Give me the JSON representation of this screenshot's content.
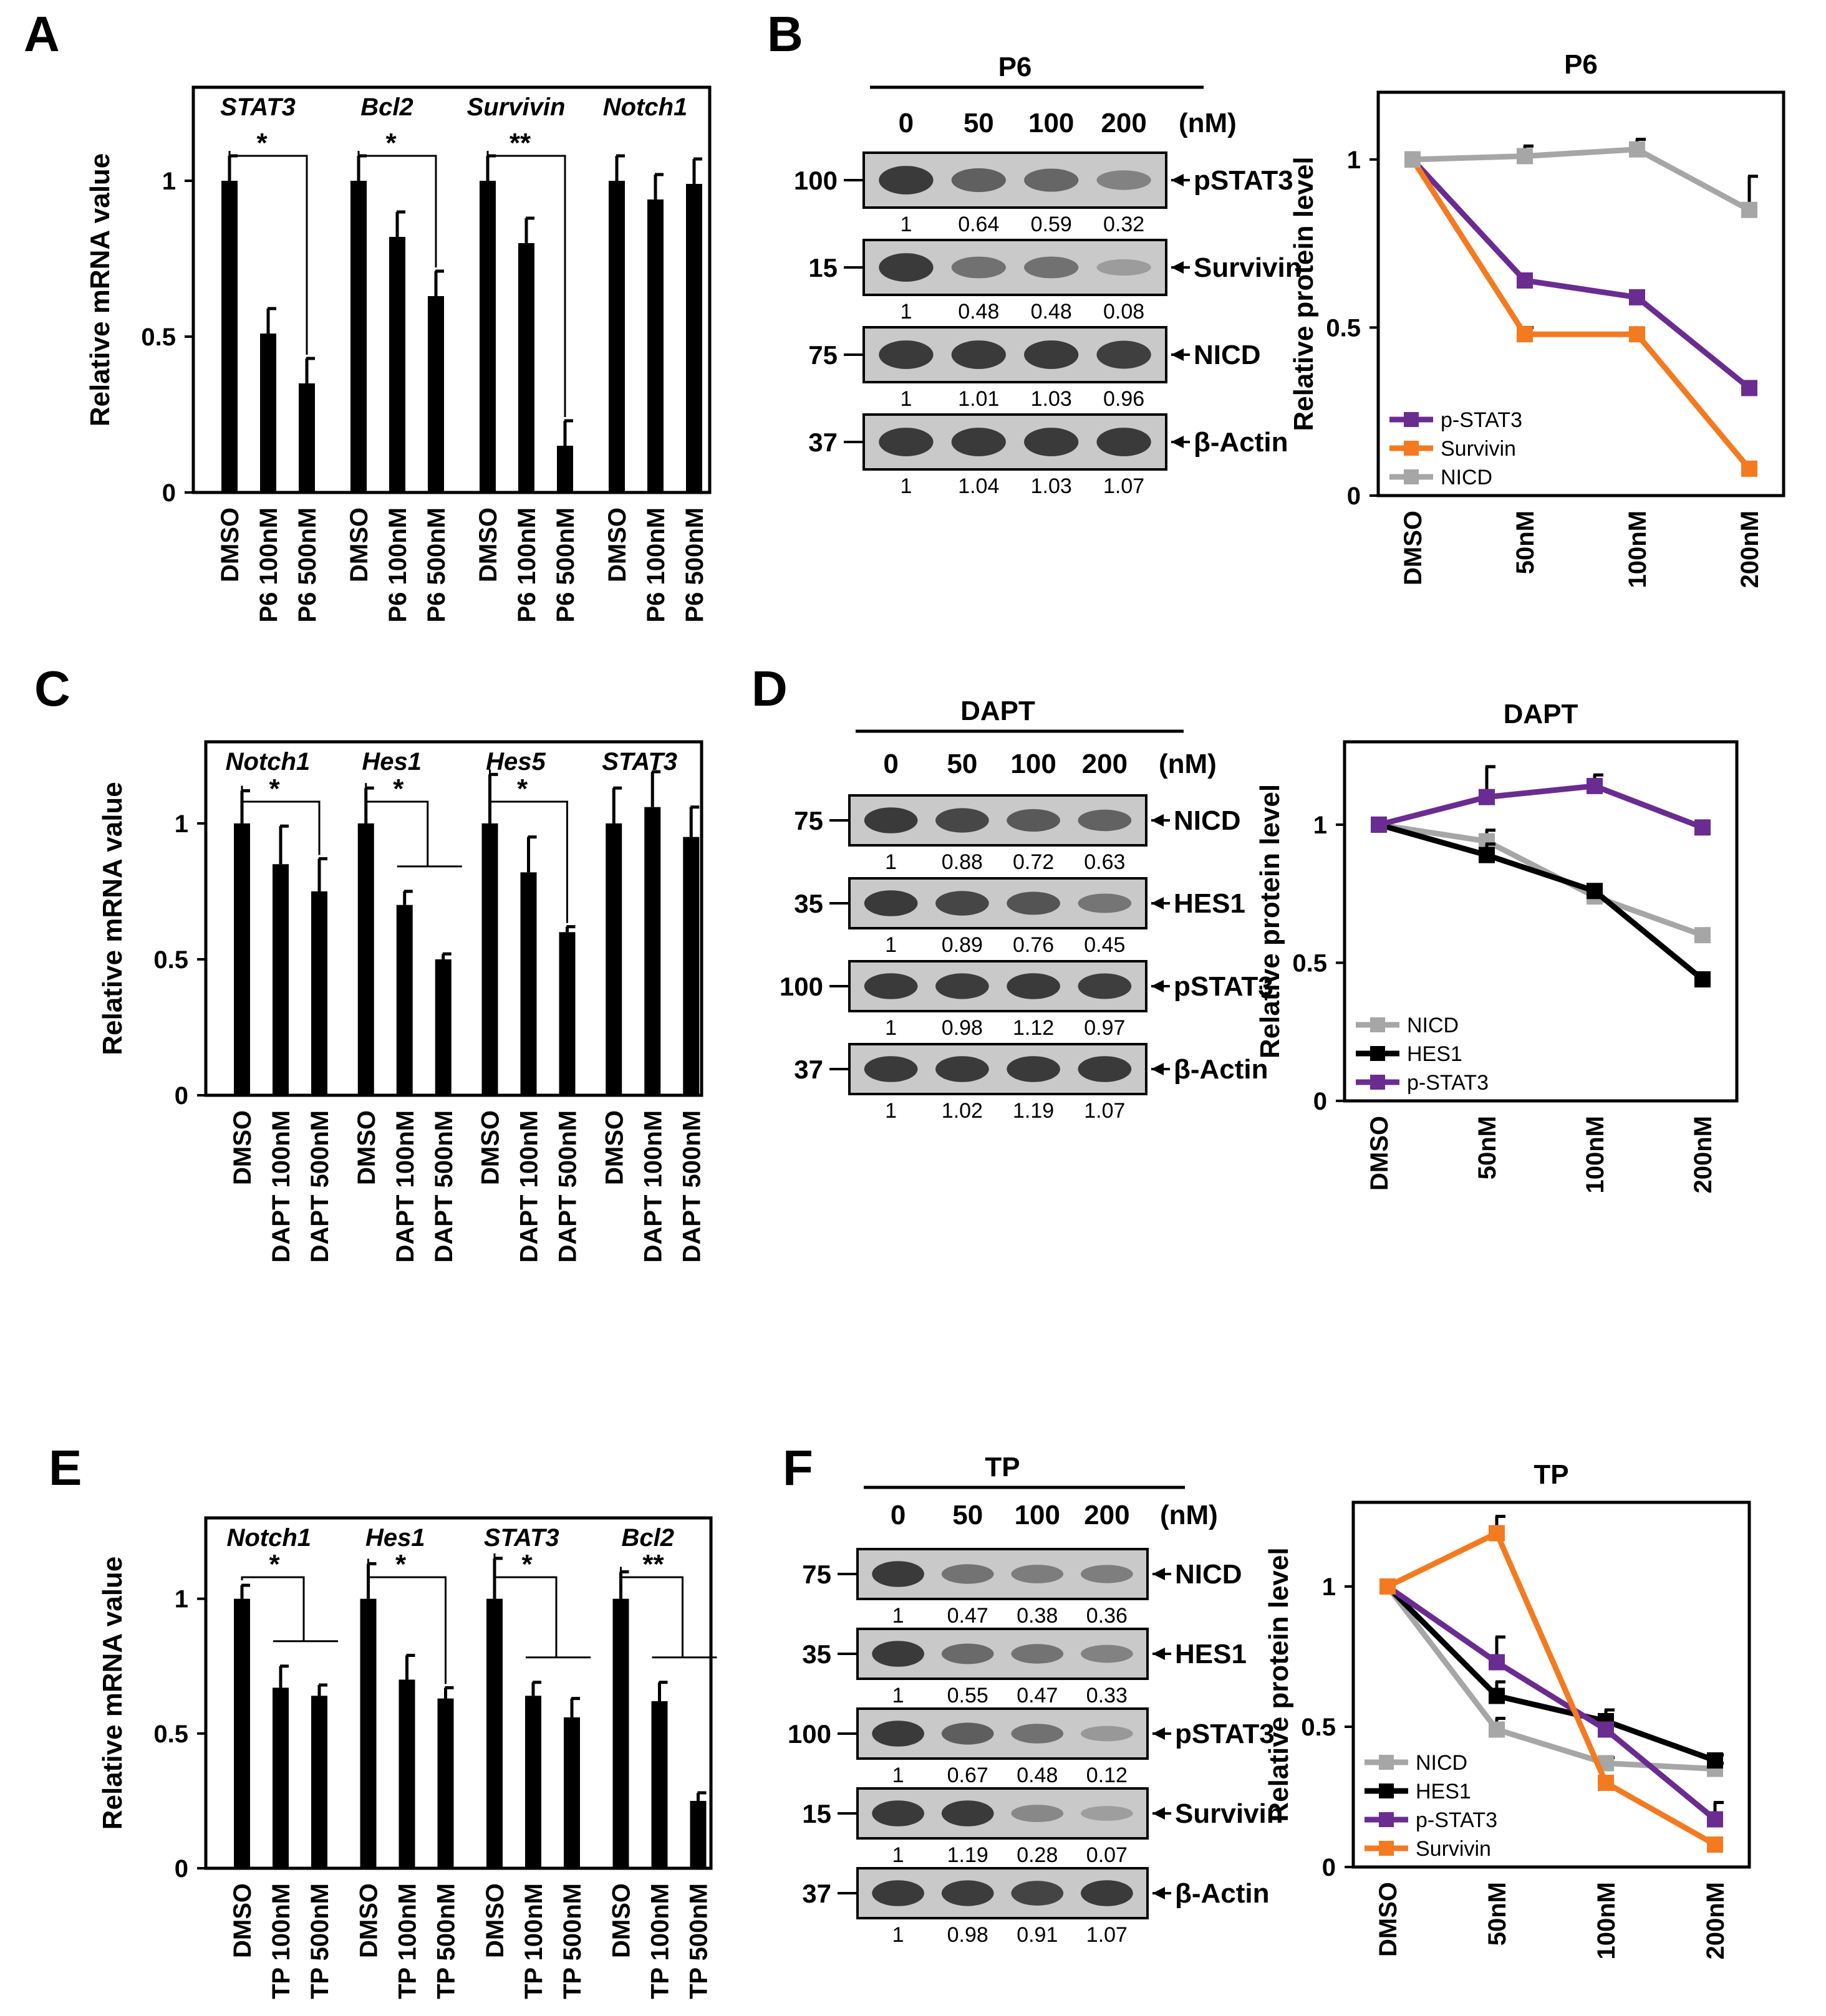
{
  "figure": {
    "panel_labels": [
      "A",
      "B",
      "C",
      "D",
      "E",
      "F"
    ],
    "colors": {
      "bar": "#000000",
      "purple": "#6a2c91",
      "orange": "#f47a20",
      "gray": "#a6a6a6",
      "black": "#000000",
      "blot_bg": "#c9c9c9",
      "band": "#3a3a3a"
    }
  },
  "chart_data": [
    {
      "panel": "A",
      "type": "bar",
      "ylabel": "Relative mRNA value",
      "ylim": [
        0,
        1.3
      ],
      "yticks": [
        {
          "v": 0,
          "t": "0"
        },
        {
          "v": 0.5,
          "t": "0.5"
        },
        {
          "v": 1,
          "t": "1"
        }
      ],
      "tick_labels": [
        "DMSO",
        "P6 100nM",
        "P6 500nM"
      ],
      "groups": [
        {
          "name": "STAT3",
          "values": [
            1.0,
            0.51,
            0.35
          ],
          "errors": [
            0.08,
            0.08,
            0.08
          ],
          "sig": "*",
          "sig_type": "direct"
        },
        {
          "name": "Bcl2",
          "values": [
            1.0,
            0.82,
            0.63
          ],
          "errors": [
            0.08,
            0.08,
            0.08
          ],
          "sig": "*",
          "sig_type": "direct"
        },
        {
          "name": "Survivin",
          "values": [
            1.0,
            0.8,
            0.15
          ],
          "errors": [
            0.08,
            0.08,
            0.08
          ],
          "sig": "**",
          "sig_type": "direct"
        },
        {
          "name": "Notch1",
          "values": [
            1.0,
            0.94,
            0.99
          ],
          "errors": [
            0.08,
            0.08,
            0.08
          ],
          "sig": "",
          "sig_type": "none"
        }
      ]
    },
    {
      "panel": "C",
      "type": "bar",
      "ylabel": "Relative mRNA value",
      "ylim": [
        0,
        1.3
      ],
      "yticks": [
        {
          "v": 0,
          "t": "0"
        },
        {
          "v": 0.5,
          "t": "0.5"
        },
        {
          "v": 1,
          "t": "1"
        }
      ],
      "tick_labels": [
        "DMSO",
        "DAPT 100nM",
        "DAPT 500nM"
      ],
      "groups": [
        {
          "name": "Notch1",
          "values": [
            1.0,
            0.85,
            0.75
          ],
          "errors": [
            0.12,
            0.14,
            0.12
          ],
          "sig": "*",
          "sig_type": "direct"
        },
        {
          "name": "Hes1",
          "values": [
            1.0,
            0.7,
            0.5
          ],
          "errors": [
            0.13,
            0.05,
            0.02
          ],
          "sig": "*",
          "sig_type": "shared"
        },
        {
          "name": "Hes5",
          "values": [
            1.0,
            0.82,
            0.6
          ],
          "errors": [
            0.18,
            0.13,
            0.02
          ],
          "sig": "*",
          "sig_type": "direct"
        },
        {
          "name": "STAT3",
          "values": [
            1.0,
            1.06,
            0.95
          ],
          "errors": [
            0.13,
            0.13,
            0.11
          ],
          "sig": "",
          "sig_type": "none"
        }
      ]
    },
    {
      "panel": "E",
      "type": "bar",
      "ylabel": "Relative mRNA value",
      "ylim": [
        0,
        1.3
      ],
      "yticks": [
        {
          "v": 0,
          "t": "0"
        },
        {
          "v": 0.5,
          "t": "0.5"
        },
        {
          "v": 1,
          "t": "1"
        }
      ],
      "tick_labels": [
        "DMSO",
        "TP 100nM",
        "TP 500nM"
      ],
      "groups": [
        {
          "name": "Notch1",
          "values": [
            1.0,
            0.67,
            0.64
          ],
          "errors": [
            0.05,
            0.08,
            0.04
          ],
          "sig": "*",
          "sig_type": "shared"
        },
        {
          "name": "Hes1",
          "values": [
            1.0,
            0.7,
            0.63
          ],
          "errors": [
            0.13,
            0.09,
            0.04
          ],
          "sig": "*",
          "sig_type": "direct"
        },
        {
          "name": "STAT3",
          "values": [
            1.0,
            0.64,
            0.56
          ],
          "errors": [
            0.15,
            0.05,
            0.07
          ],
          "sig": "*",
          "sig_type": "shared"
        },
        {
          "name": "Bcl2",
          "values": [
            1.0,
            0.62,
            0.25
          ],
          "errors": [
            0.1,
            0.07,
            0.03
          ],
          "sig": "**",
          "sig_type": "shared"
        }
      ]
    },
    {
      "panel": "B",
      "type": "line",
      "title": "P6",
      "ylabel": "Relative protein level",
      "ylim": [
        0,
        1.2
      ],
      "yticks": [
        {
          "v": 0,
          "t": "0"
        },
        {
          "v": 0.5,
          "t": "0.5"
        },
        {
          "v": 1,
          "t": "1"
        }
      ],
      "categories": [
        "DMSO",
        "50nM",
        "100nM",
        "200nM"
      ],
      "legend_position": "bottom-left",
      "series": [
        {
          "name": "p-STAT3",
          "color": "#6a2c91",
          "values": [
            1.0,
            0.64,
            0.59,
            0.32
          ],
          "errors": [
            0,
            0,
            0,
            0
          ]
        },
        {
          "name": "Survivin",
          "color": "#f47a20",
          "values": [
            1.0,
            0.48,
            0.48,
            0.08
          ],
          "errors": [
            0,
            0.02,
            0,
            0
          ]
        },
        {
          "name": "NICD",
          "color": "#a6a6a6",
          "values": [
            1.0,
            1.01,
            1.03,
            0.85
          ],
          "errors": [
            0,
            0.03,
            0.03,
            0.1
          ]
        }
      ]
    },
    {
      "panel": "D",
      "type": "line",
      "title": "DAPT",
      "ylabel": "Relative protein level",
      "ylim": [
        0,
        1.3
      ],
      "yticks": [
        {
          "v": 0,
          "t": "0"
        },
        {
          "v": 0.5,
          "t": "0.5"
        },
        {
          "v": 1,
          "t": "1"
        }
      ],
      "categories": [
        "DMSO",
        "50nM",
        "100nM",
        "200nM"
      ],
      "legend_position": "bottom-left",
      "series": [
        {
          "name": "NICD",
          "color": "#a6a6a6",
          "values": [
            1.0,
            0.94,
            0.74,
            0.6
          ],
          "errors": [
            0,
            0.04,
            0,
            0
          ]
        },
        {
          "name": "HES1",
          "color": "#000000",
          "values": [
            1.0,
            0.89,
            0.76,
            0.44
          ],
          "errors": [
            0,
            0.04,
            0,
            0
          ]
        },
        {
          "name": "p-STAT3",
          "color": "#6a2c91",
          "values": [
            1.0,
            1.1,
            1.14,
            0.99
          ],
          "errors": [
            0,
            0.11,
            0.04,
            0
          ]
        }
      ]
    },
    {
      "panel": "F",
      "type": "line",
      "title": "TP",
      "ylabel": "Relative protein level",
      "ylim": [
        0,
        1.3
      ],
      "yticks": [
        {
          "v": 0,
          "t": "0"
        },
        {
          "v": 0.5,
          "t": "0.5"
        },
        {
          "v": 1,
          "t": "1"
        }
      ],
      "categories": [
        "DMSO",
        "50nM",
        "100nM",
        "200nM"
      ],
      "legend_position": "bottom-left",
      "series": [
        {
          "name": "NICD",
          "color": "#a6a6a6",
          "values": [
            1.0,
            0.49,
            0.37,
            0.35
          ],
          "errors": [
            0,
            0.04,
            0.02,
            0.02
          ]
        },
        {
          "name": "HES1",
          "color": "#000000",
          "values": [
            1.0,
            0.61,
            0.52,
            0.38
          ],
          "errors": [
            0,
            0.05,
            0.04,
            0.02
          ]
        },
        {
          "name": "p-STAT3",
          "color": "#6a2c91",
          "values": [
            1.0,
            0.73,
            0.49,
            0.17
          ],
          "errors": [
            0,
            0.09,
            0,
            0.06
          ]
        },
        {
          "name": "Survivin",
          "color": "#f47a20",
          "values": [
            1.0,
            1.19,
            0.3,
            0.08
          ],
          "errors": [
            0,
            0.06,
            0,
            0
          ]
        }
      ]
    }
  ],
  "blots": [
    {
      "panel": "B",
      "treatment": "P6",
      "concs": [
        "0",
        "50",
        "100",
        "200"
      ],
      "unit": "(nM)",
      "rows": [
        {
          "mw": "100",
          "target": "pSTAT3",
          "quant": [
            "1",
            "0.64",
            "0.59",
            "0.32"
          ]
        },
        {
          "mw": "15",
          "target": "Survivin",
          "quant": [
            "1",
            "0.48",
            "0.48",
            "0.08"
          ]
        },
        {
          "mw": "75",
          "target": "NICD",
          "quant": [
            "1",
            "1.01",
            "1.03",
            "0.96"
          ]
        },
        {
          "mw": "37",
          "target": "β-Actin",
          "quant": [
            "1",
            "1.04",
            "1.03",
            "1.07"
          ]
        }
      ]
    },
    {
      "panel": "D",
      "treatment": "DAPT",
      "concs": [
        "0",
        "50",
        "100",
        "200"
      ],
      "unit": "(nM)",
      "rows": [
        {
          "mw": "75",
          "target": "NICD",
          "quant": [
            "1",
            "0.88",
            "0.72",
            "0.63"
          ]
        },
        {
          "mw": "35",
          "target": "HES1",
          "quant": [
            "1",
            "0.89",
            "0.76",
            "0.45"
          ]
        },
        {
          "mw": "100",
          "target": "pSTAT3",
          "quant": [
            "1",
            "0.98",
            "1.12",
            "0.97"
          ]
        },
        {
          "mw": "37",
          "target": "β-Actin",
          "quant": [
            "1",
            "1.02",
            "1.19",
            "1.07"
          ]
        }
      ]
    },
    {
      "panel": "F",
      "treatment": "TP",
      "concs": [
        "0",
        "50",
        "100",
        "200"
      ],
      "unit": "(nM)",
      "rows": [
        {
          "mw": "75",
          "target": "NICD",
          "quant": [
            "1",
            "0.47",
            "0.38",
            "0.36"
          ]
        },
        {
          "mw": "35",
          "target": "HES1",
          "quant": [
            "1",
            "0.55",
            "0.47",
            "0.33"
          ]
        },
        {
          "mw": "100",
          "target": "pSTAT3",
          "quant": [
            "1",
            "0.67",
            "0.48",
            "0.12"
          ]
        },
        {
          "mw": "15",
          "target": "Survivin",
          "quant": [
            "1",
            "1.19",
            "0.28",
            "0.07"
          ]
        },
        {
          "mw": "37",
          "target": "β-Actin",
          "quant": [
            "1",
            "0.98",
            "0.91",
            "1.07"
          ]
        }
      ]
    }
  ]
}
